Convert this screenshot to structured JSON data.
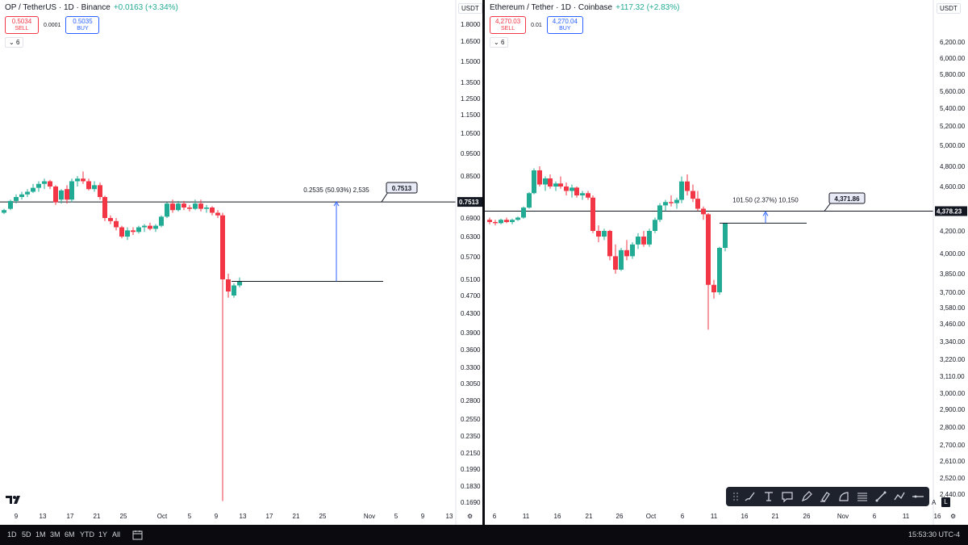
{
  "left": {
    "legend": {
      "title": "OP / TetherUS · 1D · Binance",
      "change": "+0.0163 (+3.34%)"
    },
    "trade": {
      "sell_price": "0.5034",
      "sell_label": "SELL",
      "spread": "0.0001",
      "buy_price": "0.5035",
      "buy_label": "BUY"
    },
    "indicators_count": "6",
    "unit": "USDT",
    "price_ticks": [
      "1.8000",
      "1.6500",
      "1.5000",
      "1.3500",
      "1.2500",
      "1.1500",
      "1.0500",
      "0.9500",
      "0.8500",
      "0.6900",
      "0.6300",
      "0.5700",
      "0.5100",
      "0.4700",
      "0.4300",
      "0.3900",
      "0.3600",
      "0.3300",
      "0.3050",
      "0.2800",
      "0.2550",
      "0.2350",
      "0.2150",
      "0.1990",
      "0.1830",
      "0.1690"
    ],
    "price_tick_values": [
      1.8,
      1.65,
      1.5,
      1.35,
      1.25,
      1.15,
      1.05,
      0.95,
      0.85,
      0.69,
      0.63,
      0.57,
      0.51,
      0.47,
      0.43,
      0.39,
      0.36,
      0.33,
      0.305,
      0.28,
      0.255,
      0.235,
      0.215,
      0.199,
      0.183,
      0.169
    ],
    "last_price": "0.7513",
    "last_price_value": 0.7513,
    "date_ticks": [
      "9",
      "13",
      "17",
      "21",
      "25",
      "Oct",
      "5",
      "9",
      "13",
      "17",
      "21",
      "25",
      "Nov",
      "5",
      "9",
      "13"
    ],
    "measure_label": "0.2535 (50.93%) 2,535",
    "target_label": "0.7513"
  },
  "right": {
    "legend": {
      "title": "Ethereum / Tether · 1D · Coinbase",
      "change": "+117.32 (+2.83%)"
    },
    "trade": {
      "sell_price": "4,270.03",
      "sell_label": "SELL",
      "spread": "0.01",
      "buy_price": "4,270.04",
      "buy_label": "BUY"
    },
    "indicators_count": "6",
    "unit": "USDT",
    "price_ticks": [
      "6,200.00",
      "6,000.00",
      "5,800.00",
      "5,600.00",
      "5,400.00",
      "5,200.00",
      "5,000.00",
      "4,800.00",
      "4,600.00",
      "4,200.00",
      "4,000.00",
      "3,850.00",
      "3,700.00",
      "3,580.00",
      "3,460.00",
      "3,340.00",
      "3,220.00",
      "3,110.00",
      "3,000.00",
      "2,900.00",
      "2,800.00",
      "2,700.00",
      "2,610.00",
      "2,520.00",
      "2,440.00"
    ],
    "price_tick_values": [
      6200,
      6000,
      5800,
      5600,
      5400,
      5200,
      5000,
      4800,
      4600,
      4200,
      4000,
      3850,
      3700,
      3580,
      3460,
      3340,
      3220,
      3110,
      3000,
      2900,
      2800,
      2700,
      2610,
      2520,
      2440
    ],
    "last_price": "4,378.23",
    "last_price_value": 4378.23,
    "date_ticks": [
      "6",
      "11",
      "16",
      "21",
      "26",
      "Oct",
      "6",
      "11",
      "16",
      "21",
      "26",
      "Nov",
      "6",
      "11",
      "16"
    ],
    "measure_label": "101.50 (2.37%) 10,150",
    "target_label": "4,371.86",
    "auto_label": "A",
    "log_label": "L"
  },
  "bottom": {
    "timeframes": [
      "1D",
      "5D",
      "1M",
      "3M",
      "6M",
      "YTD",
      "1Y",
      "All"
    ],
    "clock": "15:53:30 UTC-4"
  },
  "colors": {
    "up": "#22ab94",
    "down": "#f23645",
    "line": "#131722",
    "measure": "#2962ff"
  },
  "drawing_tools": [
    "grip-icon",
    "brush-icon",
    "text-icon",
    "callout-icon",
    "pen-icon",
    "highlighter-icon",
    "path-icon",
    "lines-icon",
    "trend-line-icon",
    "polyline-icon",
    "horizontal-line-icon"
  ]
}
